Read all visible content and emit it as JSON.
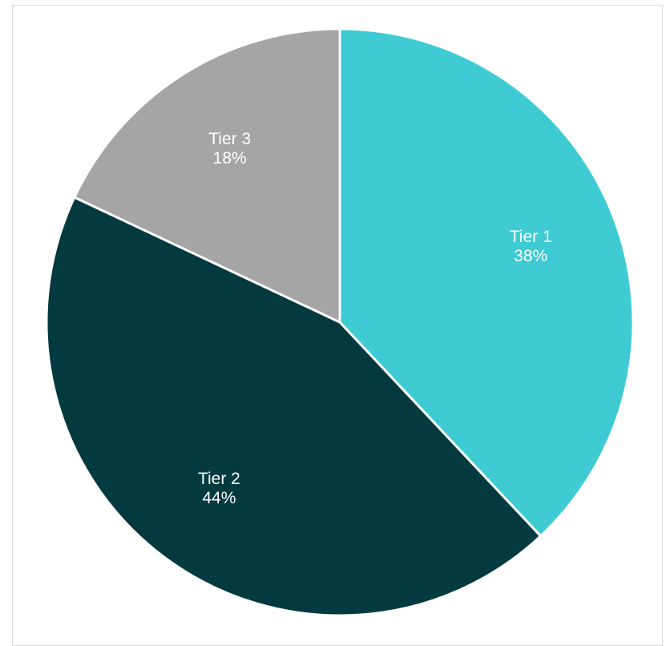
{
  "chart_data": {
    "type": "pie",
    "title": "",
    "legend": "none",
    "start_angle_deg": 0,
    "direction": "clockwise",
    "slices": [
      {
        "label": "Tier 1",
        "value": 38,
        "value_label": "38%",
        "color": "#3ecbd4"
      },
      {
        "label": "Tier 2",
        "value": 44,
        "value_label": "44%",
        "color": "#023a40"
      },
      {
        "label": "Tier 3",
        "value": 18,
        "value_label": "18%",
        "color": "#a5a5a5"
      }
    ]
  }
}
